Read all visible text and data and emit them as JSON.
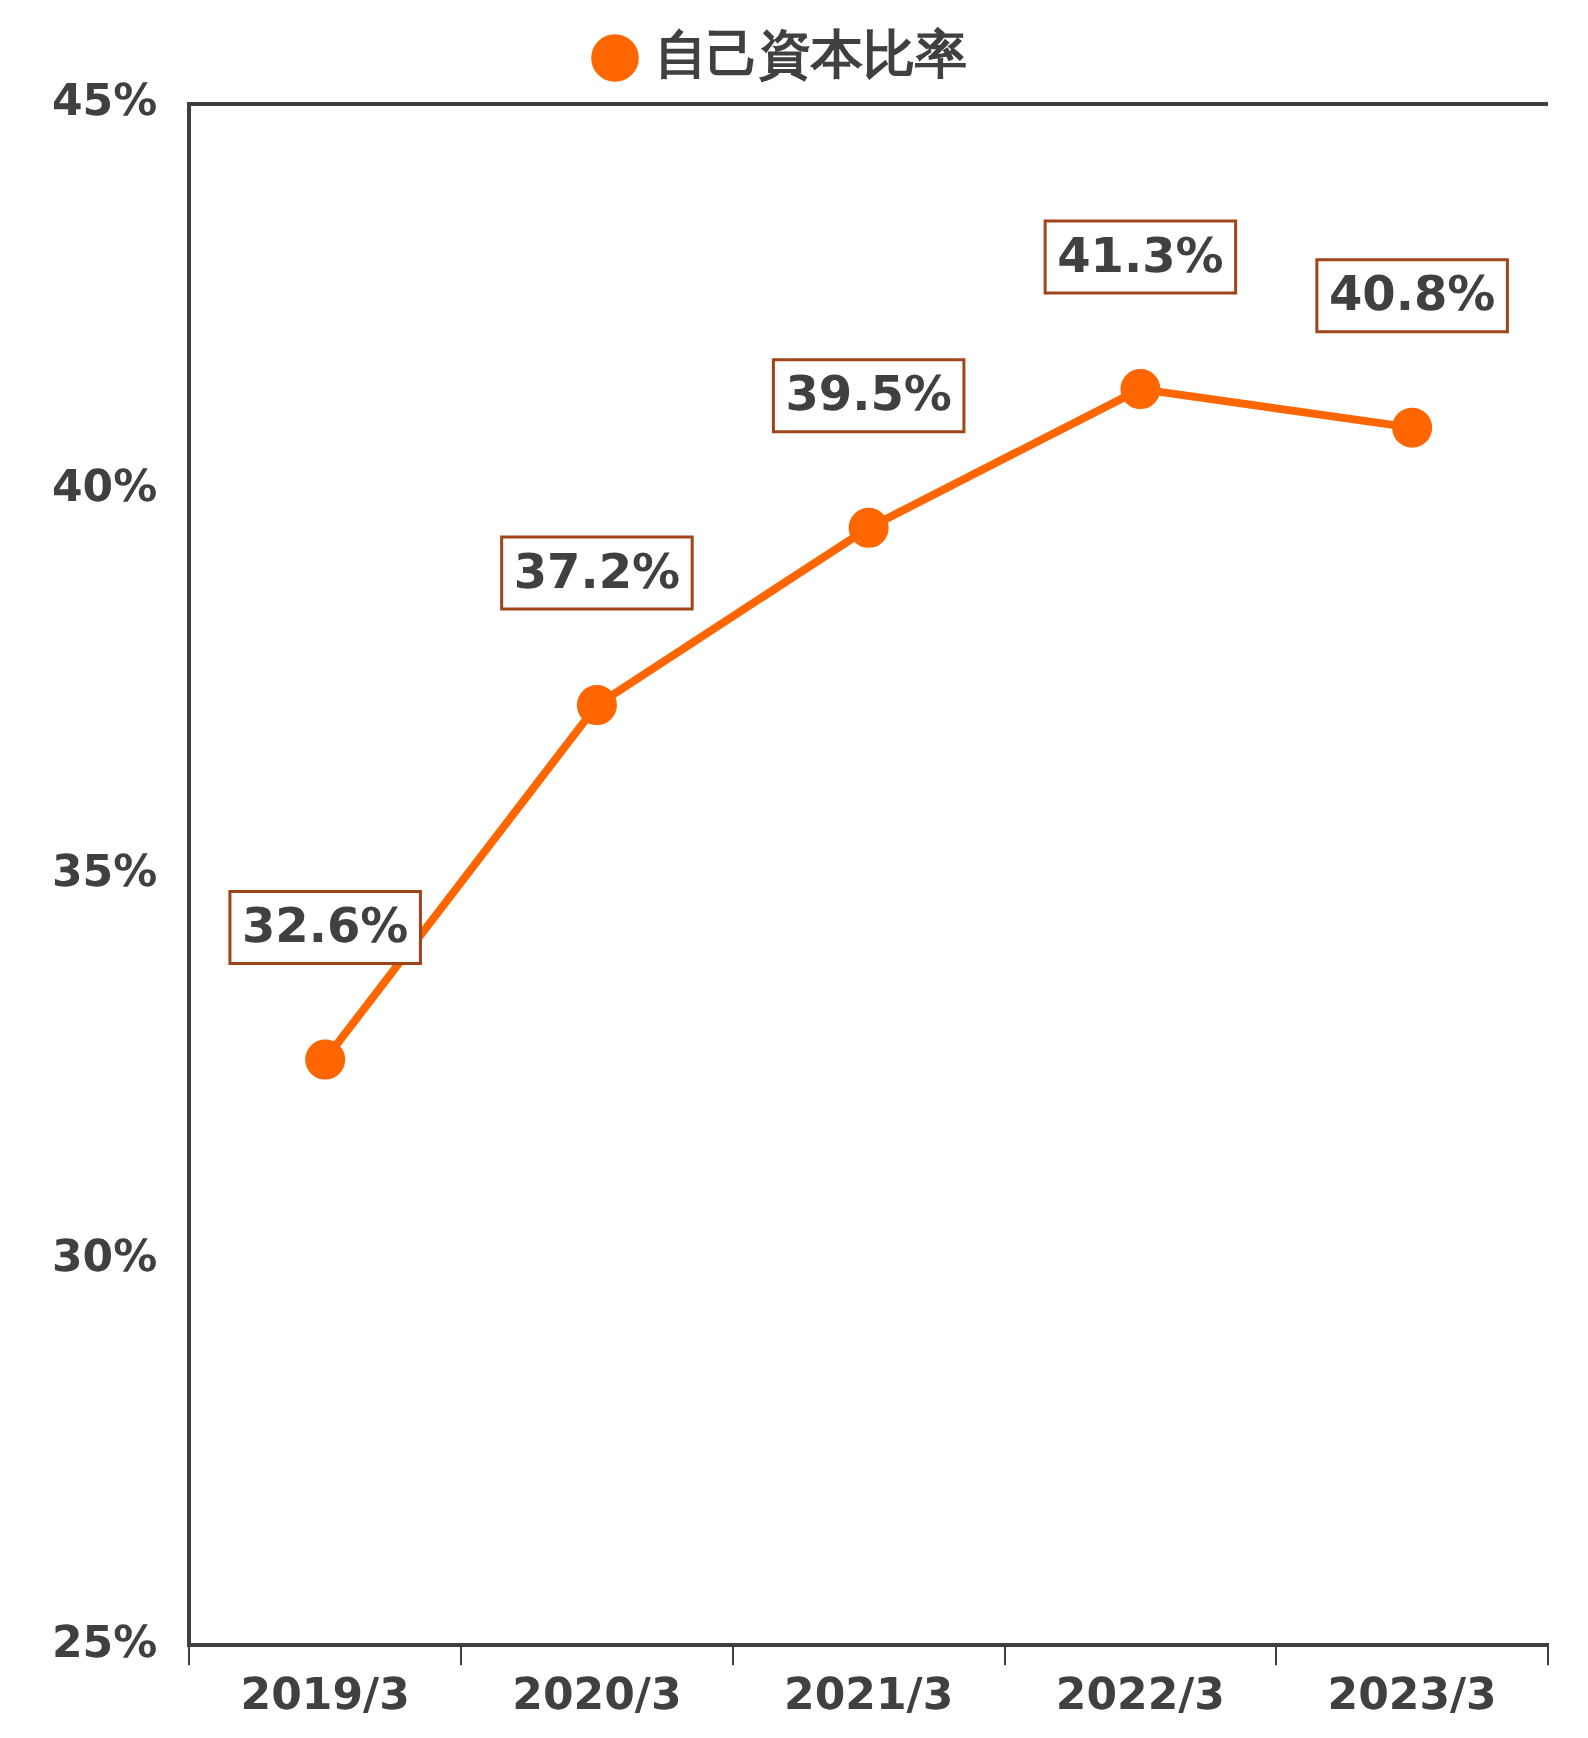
{
  "chart_data": {
    "type": "line",
    "categories": [
      "2019/3",
      "2020/3",
      "2021/3",
      "2022/3",
      "2023/3"
    ],
    "series": [
      {
        "name": "自己資本比率",
        "color": "#ff6600",
        "values": [
          32.6,
          37.2,
          39.5,
          41.3,
          40.8
        ],
        "value_labels": [
          "32.6%",
          "37.2%",
          "39.5%",
          "41.3%",
          "40.8%"
        ]
      }
    ],
    "ylim": [
      25,
      45
    ],
    "yticks": [
      {
        "value": 25,
        "label": "25%"
      },
      {
        "value": 30,
        "label": "30%"
      },
      {
        "value": 35,
        "label": "35%"
      },
      {
        "value": 40,
        "label": "40%"
      },
      {
        "value": 45,
        "label": "45%"
      }
    ],
    "grid": false,
    "legend": "top",
    "marker": "circle",
    "line_style": "solid"
  }
}
